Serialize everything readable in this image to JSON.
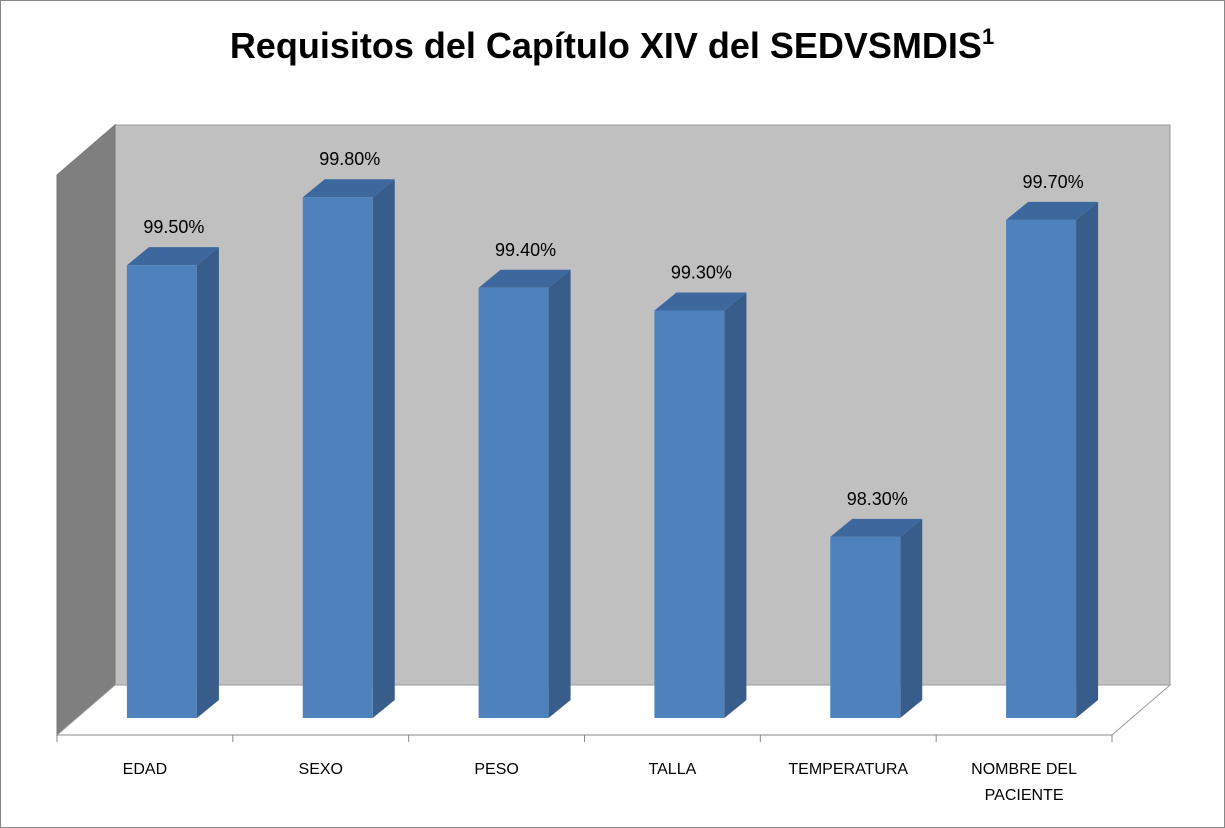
{
  "chart_data": {
    "type": "bar3d",
    "title": "Requisitos del Capítulo XIV del SEDVSMDIS",
    "title_superscript": "1",
    "categories": [
      "EDAD",
      "SEXO",
      "PESO",
      "TALLA",
      "TEMPERATURA",
      "NOMBRE DEL PACIENTE"
    ],
    "values": [
      99.5,
      99.8,
      99.4,
      99.3,
      98.3,
      99.7
    ],
    "value_labels": [
      "99.50%",
      "99.80%",
      "99.40%",
      "99.30%",
      "98.30%",
      "99.70%"
    ],
    "color": "#4f81bd",
    "ylim": [
      97.5,
      100.15
    ]
  }
}
